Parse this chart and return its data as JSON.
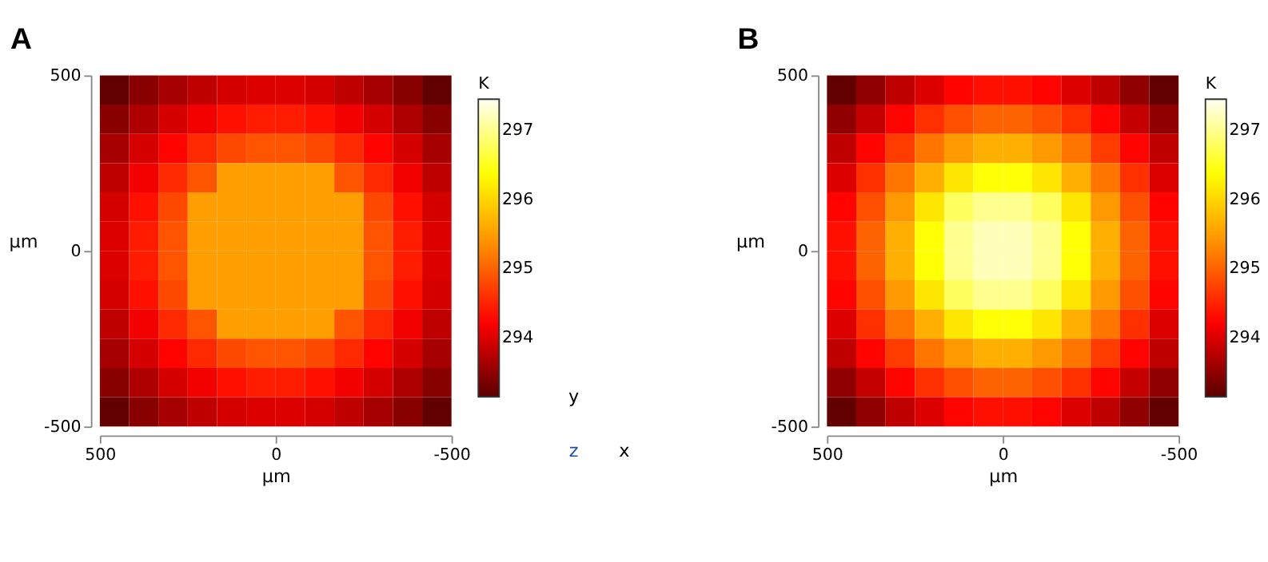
{
  "chart_data": [
    {
      "type": "heatmap",
      "title": "A",
      "xlabel": "μm",
      "ylabel": "μm",
      "clabel": "K",
      "annotations": [
        "y",
        "x",
        "z"
      ],
      "xlim": [
        500,
        -500
      ],
      "xticks": [
        500,
        0,
        -500
      ],
      "ylim": [
        -500,
        500
      ],
      "yticks": [
        -500,
        0,
        500
      ],
      "clim": [
        293.15,
        297.45
      ],
      "cticks": [
        294,
        295,
        296,
        297
      ],
      "grid": false,
      "cells": [
        [
          293.2,
          293.45,
          293.65,
          293.8,
          293.95,
          294.0,
          294.0,
          293.95,
          293.8,
          293.65,
          293.45,
          293.2
        ],
        [
          293.45,
          293.7,
          293.95,
          294.15,
          294.35,
          294.45,
          294.45,
          294.35,
          294.15,
          293.95,
          293.7,
          293.45
        ],
        [
          293.65,
          293.95,
          294.25,
          294.55,
          294.8,
          294.9,
          294.9,
          294.8,
          294.55,
          294.25,
          293.95,
          293.65
        ],
        [
          293.8,
          294.15,
          294.55,
          294.9,
          295.5,
          295.5,
          295.5,
          295.5,
          294.9,
          294.55,
          294.15,
          293.8
        ],
        [
          293.95,
          294.35,
          294.8,
          295.5,
          295.5,
          295.5,
          295.5,
          295.5,
          295.5,
          294.8,
          294.35,
          293.95
        ],
        [
          294.0,
          294.45,
          294.9,
          295.5,
          295.5,
          295.5,
          295.5,
          295.5,
          295.5,
          294.9,
          294.45,
          294.0
        ],
        [
          294.0,
          294.45,
          294.9,
          295.5,
          295.5,
          295.5,
          295.5,
          295.5,
          295.5,
          294.9,
          294.45,
          294.0
        ],
        [
          293.95,
          294.35,
          294.8,
          295.5,
          295.5,
          295.5,
          295.5,
          295.5,
          295.5,
          294.8,
          294.35,
          293.95
        ],
        [
          293.8,
          294.15,
          294.55,
          294.9,
          295.5,
          295.5,
          295.5,
          295.5,
          294.9,
          294.55,
          294.15,
          293.8
        ],
        [
          293.65,
          293.95,
          294.25,
          294.55,
          294.8,
          294.9,
          294.9,
          294.8,
          294.55,
          294.25,
          293.95,
          293.65
        ],
        [
          293.45,
          293.7,
          293.95,
          294.15,
          294.35,
          294.45,
          294.45,
          294.35,
          294.15,
          293.95,
          293.7,
          293.45
        ],
        [
          293.2,
          293.45,
          293.65,
          293.8,
          293.95,
          294.0,
          294.0,
          293.95,
          293.8,
          293.65,
          293.45,
          293.2
        ]
      ]
    },
    {
      "type": "heatmap",
      "title": "B",
      "xlabel": "μm",
      "ylabel": "μm",
      "clabel": "K",
      "xlim": [
        500,
        -500
      ],
      "xticks": [
        500,
        0,
        -500
      ],
      "ylim": [
        -500,
        500
      ],
      "yticks": [
        -500,
        0,
        500
      ],
      "clim": [
        293.15,
        297.45
      ],
      "cticks": [
        294,
        295,
        296,
        297
      ],
      "grid": false,
      "cells": [
        [
          293.2,
          293.5,
          293.8,
          294.0,
          294.25,
          294.35,
          294.35,
          294.25,
          294.0,
          293.8,
          293.5,
          293.2
        ],
        [
          293.5,
          293.85,
          294.25,
          294.6,
          294.85,
          295.0,
          295.0,
          294.85,
          294.6,
          294.25,
          293.85,
          293.5
        ],
        [
          293.8,
          294.25,
          294.7,
          295.15,
          295.45,
          295.65,
          295.65,
          295.45,
          295.15,
          294.7,
          294.25,
          293.8
        ],
        [
          294.0,
          294.6,
          295.15,
          295.65,
          296.15,
          296.4,
          296.4,
          296.15,
          295.65,
          295.15,
          294.6,
          294.0
        ],
        [
          294.25,
          294.85,
          295.45,
          296.15,
          296.8,
          297.0,
          297.0,
          296.8,
          296.15,
          295.45,
          294.85,
          294.25
        ],
        [
          294.35,
          295.0,
          295.65,
          296.4,
          297.0,
          297.2,
          297.2,
          297.0,
          296.4,
          295.65,
          295.0,
          294.35
        ],
        [
          294.35,
          295.0,
          295.65,
          296.4,
          297.0,
          297.2,
          297.2,
          297.0,
          296.4,
          295.65,
          295.0,
          294.35
        ],
        [
          294.25,
          294.85,
          295.45,
          296.15,
          296.8,
          297.0,
          297.0,
          296.8,
          296.15,
          295.45,
          294.85,
          294.25
        ],
        [
          294.0,
          294.6,
          295.15,
          295.65,
          296.15,
          296.4,
          296.4,
          296.15,
          295.65,
          295.15,
          294.6,
          294.0
        ],
        [
          293.8,
          294.25,
          294.7,
          295.15,
          295.45,
          295.65,
          295.65,
          295.45,
          295.15,
          294.7,
          294.25,
          293.8
        ],
        [
          293.5,
          293.85,
          294.25,
          294.6,
          294.85,
          295.0,
          295.0,
          294.85,
          294.6,
          294.25,
          293.85,
          293.5
        ],
        [
          293.2,
          293.5,
          293.8,
          294.0,
          294.25,
          294.35,
          294.35,
          294.25,
          294.0,
          293.8,
          293.5,
          293.2
        ]
      ]
    }
  ]
}
